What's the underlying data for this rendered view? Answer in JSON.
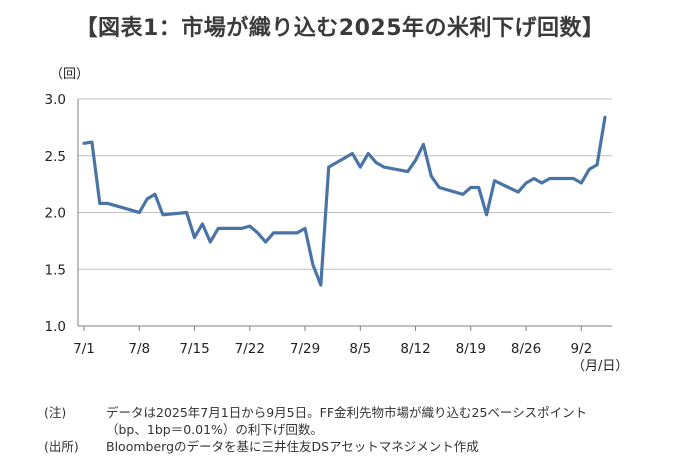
{
  "title": "【図表1：市場が織り込む2025年の米利下げ回数】",
  "chart_data": {
    "type": "line",
    "ylabel": "（回）",
    "xlabel": "（月/日）",
    "ylim": [
      1.0,
      3.0
    ],
    "yticks": [
      "1.0",
      "1.5",
      "2.0",
      "2.5",
      "3.0"
    ],
    "ytick_values": [
      1.0,
      1.5,
      2.0,
      2.5,
      3.0
    ],
    "xtick_labels": [
      "7/1",
      "7/8",
      "7/15",
      "7/22",
      "7/29",
      "8/5",
      "8/12",
      "8/19",
      "8/26",
      "9/2"
    ],
    "xtick_dates": [
      "7/1",
      "7/8",
      "7/15",
      "7/22",
      "7/29",
      "8/5",
      "8/12",
      "8/19",
      "8/26",
      "9/2"
    ],
    "grid": true,
    "line_color": "#4a74a6",
    "series": [
      {
        "x": [
          "7/1",
          "7/2",
          "7/3",
          "7/4",
          "7/7",
          "7/8",
          "7/9",
          "7/10",
          "7/11",
          "7/14",
          "7/15",
          "7/16",
          "7/17",
          "7/18",
          "7/21",
          "7/22",
          "7/23",
          "7/24",
          "7/25",
          "7/28",
          "7/29",
          "7/30",
          "7/31",
          "8/1",
          "8/4",
          "8/5",
          "8/6",
          "8/7",
          "8/8",
          "8/11",
          "8/12",
          "8/13",
          "8/14",
          "8/15",
          "8/18",
          "8/19",
          "8/20",
          "8/21",
          "8/22",
          "8/25",
          "8/26",
          "8/27",
          "8/28",
          "8/29",
          "9/1",
          "9/2",
          "9/3",
          "9/4",
          "9/5"
        ],
        "values": [
          2.61,
          2.62,
          2.08,
          2.08,
          2.02,
          2.0,
          2.12,
          2.16,
          1.98,
          2.0,
          1.78,
          1.9,
          1.74,
          1.86,
          1.86,
          1.88,
          1.82,
          1.74,
          1.82,
          1.82,
          1.86,
          1.54,
          1.36,
          2.4,
          2.52,
          2.4,
          2.52,
          2.44,
          2.4,
          2.36,
          2.46,
          2.6,
          2.32,
          2.22,
          2.16,
          2.22,
          2.22,
          1.98,
          2.28,
          2.18,
          2.26,
          2.3,
          2.26,
          2.3,
          2.3,
          2.26,
          2.38,
          2.42,
          2.84
        ]
      }
    ]
  },
  "notes": {
    "note_tag": "(注)",
    "note_line1": "データは2025年7月1日から9月5日。FF金利先物市場が織り込む25ベーシスポイント",
    "note_line2": "（bp、1bp＝0.01%）の利下げ回数。",
    "source_tag": "(出所)",
    "source_line": "Bloombergのデータを基に三井住友DSアセットマネジメント作成"
  }
}
